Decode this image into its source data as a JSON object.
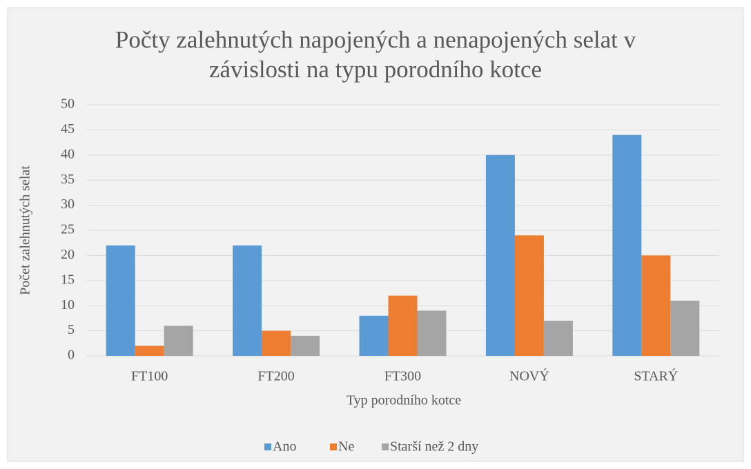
{
  "chart_data": {
    "type": "bar",
    "title": "Počty zalehnutých napojených a nenapojených selat v závislosti na typu porodního kotce",
    "xlabel": "Typ porodního kotce",
    "ylabel": "Počet zalehnutých selat",
    "categories": [
      "FT100",
      "FT200",
      "FT300",
      "NOVÝ",
      "STARÝ"
    ],
    "series": [
      {
        "name": "Ano",
        "color": "#5b9bd5",
        "values": [
          22,
          22,
          8,
          40,
          44
        ]
      },
      {
        "name": "Ne",
        "color": "#ed7d31",
        "values": [
          2,
          5,
          12,
          24,
          20
        ]
      },
      {
        "name": "Starší než 2 dny",
        "color": "#a5a5a5",
        "values": [
          6,
          4,
          9,
          7,
          11
        ]
      }
    ],
    "ylim": [
      0,
      50
    ],
    "yticks": [
      0,
      5,
      10,
      15,
      20,
      25,
      30,
      35,
      40,
      45,
      50
    ],
    "grid": true,
    "legend": "bottom"
  }
}
